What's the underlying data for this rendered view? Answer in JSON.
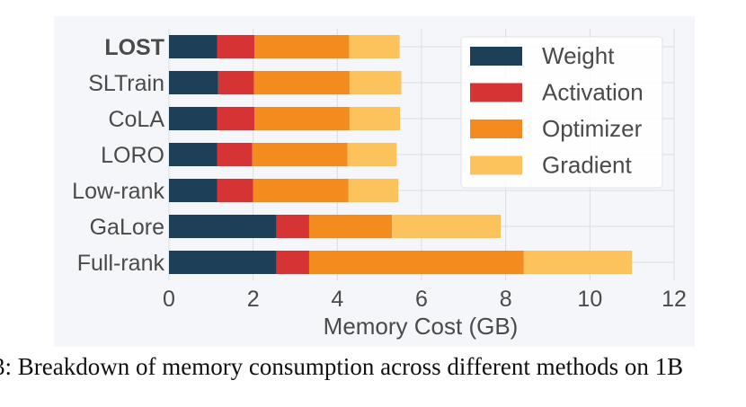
{
  "chart_data": {
    "type": "bar",
    "orientation": "horizontal",
    "stacked": true,
    "categories": [
      "LOST",
      "SLTrain",
      "CoLA",
      "LORO",
      "Low-rank",
      "GaLore",
      "Full-rank"
    ],
    "highlight_category": "LOST",
    "series": [
      {
        "name": "Weight",
        "color": "#1d3f58",
        "values": [
          1.15,
          1.17,
          1.15,
          1.15,
          1.15,
          2.55,
          2.55
        ]
      },
      {
        "name": "Activation",
        "color": "#d63335",
        "values": [
          0.88,
          0.85,
          0.88,
          0.83,
          0.85,
          0.78,
          0.78
        ]
      },
      {
        "name": "Optimizer",
        "color": "#f48b1f",
        "values": [
          2.25,
          2.27,
          2.26,
          2.26,
          2.26,
          1.97,
          5.1
        ]
      },
      {
        "name": "Gradient",
        "color": "#fcc35d",
        "values": [
          1.2,
          1.23,
          1.2,
          1.17,
          1.19,
          2.58,
          2.57
        ]
      }
    ],
    "xlabel": "Memory Cost (GB)",
    "ylabel": "",
    "xlim": [
      0,
      12
    ],
    "xticks": [
      0,
      2,
      4,
      6,
      8,
      10,
      12
    ],
    "grid": true,
    "legend_position": "top-right",
    "background": "#f5f6f9"
  },
  "caption": "3: Breakdown of memory consumption across different methods on 1B"
}
